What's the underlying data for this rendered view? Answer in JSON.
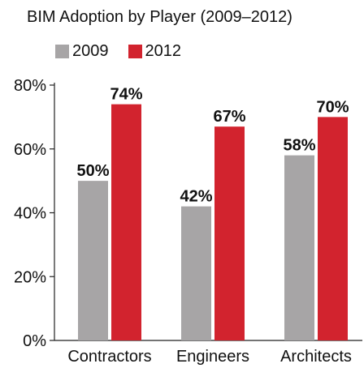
{
  "chart_data": {
    "type": "bar",
    "title": "BIM Adoption by Player (2009–2012)",
    "categories": [
      "Contractors",
      "Engineers",
      "Architects"
    ],
    "series": [
      {
        "name": "2009",
        "values": [
          50,
          42,
          58
        ],
        "labels": [
          "50%",
          "42%",
          "58%"
        ],
        "color": "#a7a5a6"
      },
      {
        "name": "2012",
        "values": [
          74,
          67,
          70
        ],
        "labels": [
          "74%",
          "67%",
          "70%"
        ],
        "color": "#d2232e"
      }
    ],
    "ylim": [
      0,
      80
    ],
    "yticks": [
      0,
      20,
      40,
      60,
      80
    ],
    "ytick_labels": [
      "0%",
      "20%",
      "40%",
      "60%",
      "80%"
    ],
    "xlabel": "",
    "ylabel": "",
    "grid": false,
    "legend_position": "top-left"
  }
}
